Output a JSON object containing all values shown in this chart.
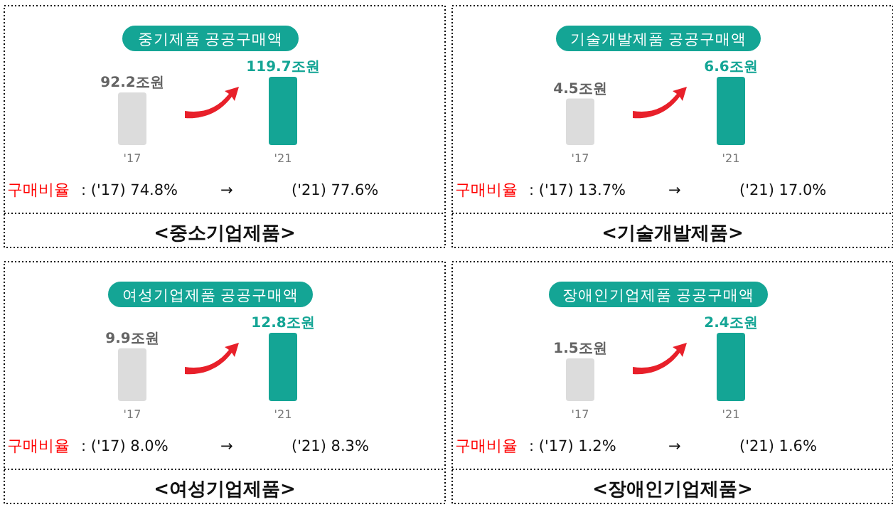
{
  "chart_data": [
    {
      "type": "bar",
      "title": "중기제품 공공구매액",
      "categories": [
        "'17",
        "'21"
      ],
      "values": [
        92.2,
        119.7
      ],
      "colors": [
        "#dcdcdc",
        "#14a595"
      ],
      "value_labels": [
        "92.2조원",
        "119.7조원"
      ],
      "annotations": [
        "구매비율",
        ": ('17) 74.8%",
        "→",
        "('21) 77.6%"
      ],
      "xlabel": "<중소기업제품>"
    },
    {
      "type": "bar",
      "title": "기술개발제품 공공구매액",
      "categories": [
        "'17",
        "'21"
      ],
      "values": [
        4.5,
        6.6
      ],
      "colors": [
        "#dcdcdc",
        "#14a595"
      ],
      "value_labels": [
        "4.5조원",
        "6.6조원"
      ],
      "annotations": [
        "구매비율",
        ": ('17) 13.7%",
        "→",
        "('21) 17.0%"
      ],
      "xlabel": "<기술개발제품>"
    },
    {
      "type": "bar",
      "title": "여성기업제품 공공구매액",
      "categories": [
        "'17",
        "'21"
      ],
      "values": [
        9.9,
        12.8
      ],
      "colors": [
        "#dcdcdc",
        "#14a595"
      ],
      "value_labels": [
        "9.9조원",
        "12.8조원"
      ],
      "annotations": [
        "구매비율",
        ": ('17) 8.0%",
        "→",
        "('21) 8.3%"
      ],
      "xlabel": "<여성기업제품>"
    },
    {
      "type": "bar",
      "title": "장애인기업제품 공공구매액",
      "categories": [
        "'17",
        "'21"
      ],
      "values": [
        1.5,
        2.4
      ],
      "colors": [
        "#dcdcdc",
        "#14a595"
      ],
      "value_labels": [
        "1.5조원",
        "2.4조원"
      ],
      "annotations": [
        "구매비율",
        ": ('17) 1.2%",
        "→",
        "('21) 1.6%"
      ],
      "xlabel": "<장애인기업제품>"
    }
  ]
}
